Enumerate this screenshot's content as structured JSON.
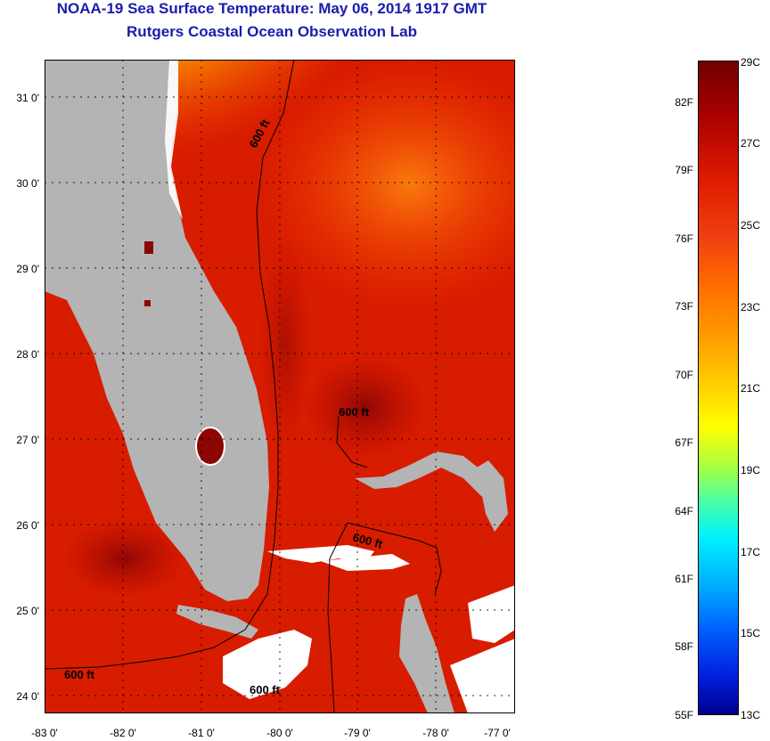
{
  "title": {
    "line1": "NOAA-19 Sea Surface Temperature:  May 06, 2014 1917 GMT",
    "line2": "Rutgers Coastal Ocean Observation Lab"
  },
  "map": {
    "lat_labels": [
      "31 0'",
      "30 0'",
      "29 0'",
      "28 0'",
      "27 0'",
      "26 0'",
      "25 0'",
      "24 0'"
    ],
    "lon_labels": [
      "-83 0'",
      "-82 0'",
      "-81 0'",
      "-80 0'",
      "-79 0'",
      "-78 0'",
      "-77 0'"
    ],
    "contour_labels": [
      "600 ft",
      "600 ft",
      "600 ft",
      "600 ft",
      "600 ft"
    ],
    "colors": {
      "land": "#b4b4b4",
      "cloud": "#ffffff",
      "ocean_warm": "#d81c00",
      "ocean_dark": "#8c0606",
      "ocean_cool": "#ffd400"
    }
  },
  "colorbar": {
    "fahrenheit": [
      "82F",
      "79F",
      "76F",
      "73F",
      "70F",
      "67F",
      "64F",
      "61F",
      "58F",
      "55F"
    ],
    "celsius": [
      "29C",
      "27C",
      "25C",
      "23C",
      "21C",
      "19C",
      "17C",
      "15C",
      "13C"
    ],
    "range_c": [
      13,
      29
    ]
  }
}
